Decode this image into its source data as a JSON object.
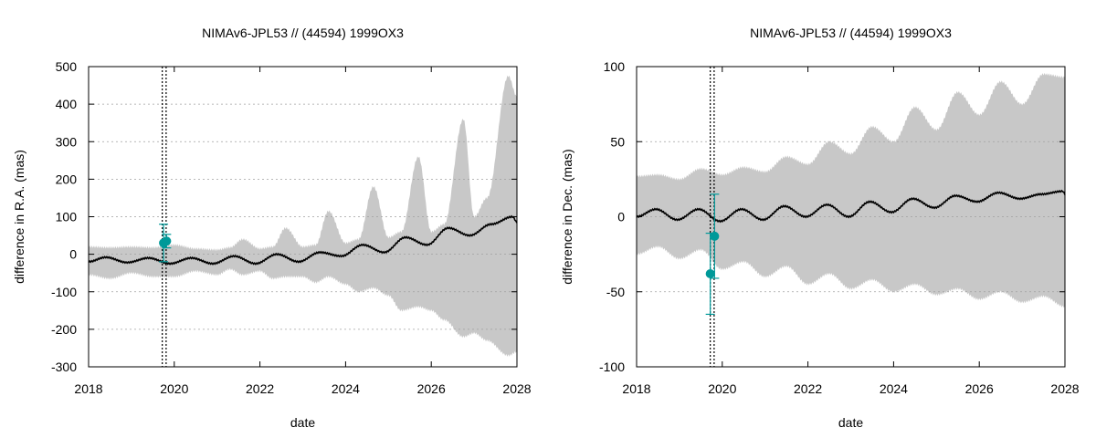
{
  "chart_data": [
    {
      "type": "line",
      "title": "NIMAv6-JPL53 // (44594) 1999OX3",
      "xlabel": "date",
      "ylabel": "difference in R.A. (mas)",
      "xlim": [
        2018,
        2028
      ],
      "ylim": [
        -300,
        500
      ],
      "xticks": [
        2018,
        2020,
        2022,
        2024,
        2026,
        2028
      ],
      "yticks": [
        -300,
        -200,
        -100,
        0,
        100,
        200,
        300,
        400,
        500
      ],
      "xtick_labels": [
        "2018",
        "2020",
        "2022",
        "2024",
        "2026",
        "2028"
      ],
      "ytick_labels": [
        "-300",
        "-200",
        "-100",
        "0",
        "100",
        "200",
        "300",
        "400",
        "500"
      ],
      "grid": "horizontal dashed",
      "vertical_markers": [
        2019.72,
        2019.81
      ],
      "band": {
        "name": "uncertainty",
        "color": "#c8c8c8",
        "x": [
          2018.0,
          2018.5,
          2019.0,
          2019.5,
          2020.0,
          2020.5,
          2021.0,
          2021.3,
          2021.6,
          2022.0,
          2022.3,
          2022.6,
          2023.0,
          2023.3,
          2023.6,
          2024.0,
          2024.3,
          2024.65,
          2025.0,
          2025.3,
          2025.7,
          2026.0,
          2026.3,
          2026.75,
          2027.0,
          2027.3,
          2027.8,
          2028.0
        ],
        "upper": [
          20,
          18,
          20,
          18,
          25,
          15,
          12,
          18,
          40,
          15,
          20,
          70,
          20,
          25,
          115,
          30,
          40,
          180,
          45,
          60,
          260,
          60,
          80,
          360,
          100,
          150,
          475,
          420
        ],
        "lower": [
          -55,
          -65,
          -50,
          -60,
          -60,
          -45,
          -55,
          -40,
          -55,
          -45,
          -65,
          -60,
          -60,
          -75,
          -60,
          -80,
          -100,
          -90,
          -110,
          -150,
          -140,
          -150,
          -175,
          -220,
          -210,
          -230,
          -270,
          -260
        ]
      },
      "series": [
        {
          "name": "mean difference",
          "color": "#000000",
          "x": [
            2018.0,
            2018.4,
            2018.9,
            2019.4,
            2019.9,
            2020.4,
            2020.9,
            2021.4,
            2021.9,
            2022.4,
            2022.9,
            2023.4,
            2023.9,
            2024.4,
            2024.9,
            2025.4,
            2025.9,
            2026.4,
            2026.9,
            2027.4,
            2027.9,
            2028.0
          ],
          "y": [
            -20,
            -8,
            -22,
            -10,
            -25,
            -10,
            -25,
            -5,
            -25,
            0,
            -20,
            5,
            -5,
            25,
            5,
            45,
            25,
            70,
            50,
            80,
            100,
            85
          ]
        }
      ],
      "points": [
        {
          "x": 2019.75,
          "y": 30,
          "err": 50,
          "color": "#009999"
        },
        {
          "x": 2019.82,
          "y": 35,
          "err": 18,
          "color": "#009999"
        }
      ]
    },
    {
      "type": "line",
      "title": "NIMAv6-JPL53 // (44594) 1999OX3",
      "xlabel": "date",
      "ylabel": "difference in Dec. (mas)",
      "xlim": [
        2018,
        2028
      ],
      "ylim": [
        -100,
        100
      ],
      "xticks": [
        2018,
        2020,
        2022,
        2024,
        2026,
        2028
      ],
      "yticks": [
        -100,
        -50,
        0,
        50,
        100
      ],
      "xtick_labels": [
        "2018",
        "2020",
        "2022",
        "2024",
        "2026",
        "2028"
      ],
      "ytick_labels": [
        "-100",
        "-50",
        "0",
        "50",
        "100"
      ],
      "grid": "horizontal dashed",
      "vertical_markers": [
        2019.72,
        2019.81
      ],
      "band": {
        "name": "uncertainty",
        "color": "#c8c8c8",
        "x": [
          2018.0,
          2018.5,
          2019.0,
          2019.5,
          2020.0,
          2020.5,
          2021.0,
          2021.5,
          2022.0,
          2022.5,
          2023.0,
          2023.5,
          2024.0,
          2024.5,
          2025.0,
          2025.5,
          2026.0,
          2026.5,
          2027.0,
          2027.5,
          2028.0
        ],
        "upper": [
          27,
          28,
          25,
          32,
          28,
          33,
          30,
          40,
          35,
          50,
          42,
          60,
          50,
          73,
          58,
          83,
          68,
          90,
          75,
          95,
          93
        ],
        "lower": [
          -25,
          -20,
          -28,
          -22,
          -35,
          -30,
          -40,
          -33,
          -45,
          -38,
          -48,
          -42,
          -50,
          -45,
          -52,
          -48,
          -55,
          -50,
          -57,
          -53,
          -60
        ]
      },
      "series": [
        {
          "name": "mean difference",
          "color": "#000000",
          "x": [
            2018.0,
            2018.45,
            2018.95,
            2019.45,
            2019.95,
            2020.45,
            2020.95,
            2021.45,
            2021.95,
            2022.45,
            2022.95,
            2023.45,
            2023.95,
            2024.45,
            2024.95,
            2025.45,
            2025.95,
            2026.45,
            2026.95,
            2027.45,
            2027.95,
            2028.0
          ],
          "y": [
            0,
            5,
            -2,
            5,
            -3,
            5,
            -2,
            7,
            0,
            8,
            0,
            10,
            3,
            12,
            6,
            14,
            10,
            16,
            12,
            15,
            17,
            15
          ]
        }
      ],
      "points": [
        {
          "x": 2019.72,
          "y": -38,
          "err": 27,
          "color": "#009999"
        },
        {
          "x": 2019.82,
          "y": -13,
          "err": 28,
          "color": "#009999"
        }
      ]
    }
  ]
}
